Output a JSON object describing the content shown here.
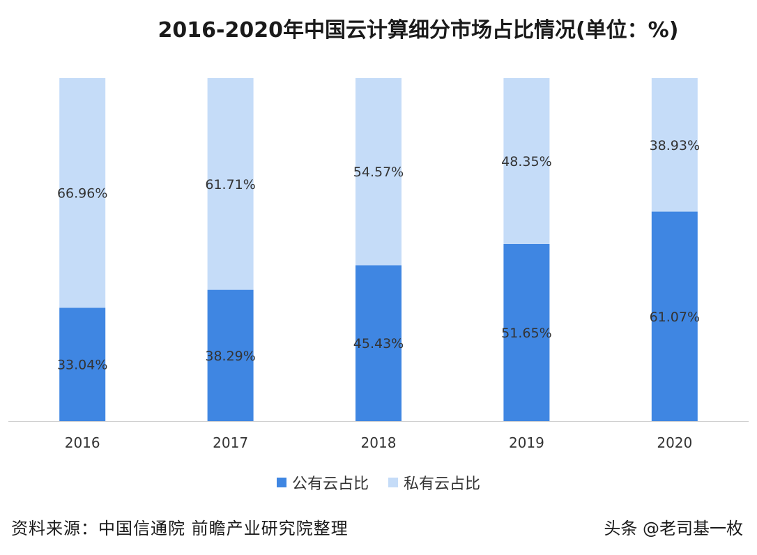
{
  "chart_data": {
    "type": "bar",
    "stacked": true,
    "title": "2016-2020年中国云计算细分市场占比情况(单位：%)",
    "categories": [
      "2016",
      "2017",
      "2018",
      "2019",
      "2020"
    ],
    "series": [
      {
        "name": "公有云占比",
        "color": "#3f86e2",
        "values": [
          33.04,
          38.29,
          45.43,
          51.65,
          61.07
        ],
        "labels": [
          "33.04%",
          "38.29%",
          "45.43%",
          "51.65%",
          "61.07%"
        ]
      },
      {
        "name": "私有云占比",
        "color": "#c5dcf8",
        "values": [
          66.96,
          61.71,
          54.57,
          48.35,
          38.93
        ],
        "labels": [
          "66.96%",
          "61.71%",
          "54.57%",
          "48.35%",
          "38.93%"
        ]
      }
    ],
    "ylim": [
      0,
      100
    ],
    "grid": false,
    "legend": "bottom"
  },
  "footer": {
    "source": "资料来源：中国信通院 前瞻产业研究院整理",
    "watermark": "头条 @老司基一枚"
  }
}
